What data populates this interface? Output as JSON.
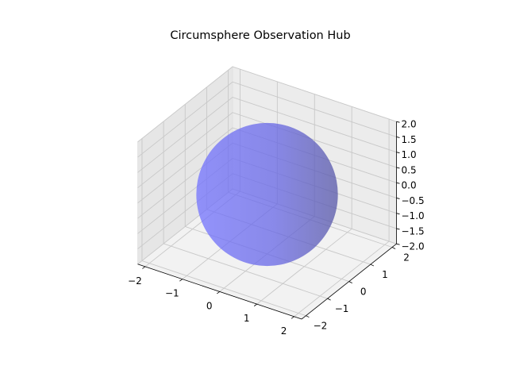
{
  "chart_data": {
    "type": "surface3d",
    "title": "Circumsphere Observation Hub",
    "shape": "sphere",
    "center": [
      0,
      0,
      0
    ],
    "radius": 2,
    "xlim": [
      -2.2,
      2.2
    ],
    "ylim": [
      -2.2,
      2.2
    ],
    "zlim": [
      -2.0,
      2.0
    ],
    "xticks": [
      -2,
      -1,
      0,
      1,
      2
    ],
    "yticks": [
      -2,
      -1,
      0,
      1,
      2
    ],
    "zticks": [
      -2.0,
      -1.5,
      -1.0,
      -0.5,
      0.0,
      0.5,
      1.0,
      1.5,
      2.0
    ],
    "xtick_labels": [
      "−2",
      "−1",
      "0",
      "1",
      "2"
    ],
    "ytick_labels": [
      "−2",
      "−1",
      "0",
      "1",
      "2"
    ],
    "ztick_labels": [
      "−2.0",
      "−1.5",
      "−1.0",
      "−0.5",
      "0.0",
      "0.5",
      "1.0",
      "1.5",
      "2.0"
    ],
    "xlabel": "",
    "ylabel": "",
    "zlabel": "",
    "grid": true,
    "surface_color": "#5a5af0",
    "surface_alpha": 0.75
  }
}
